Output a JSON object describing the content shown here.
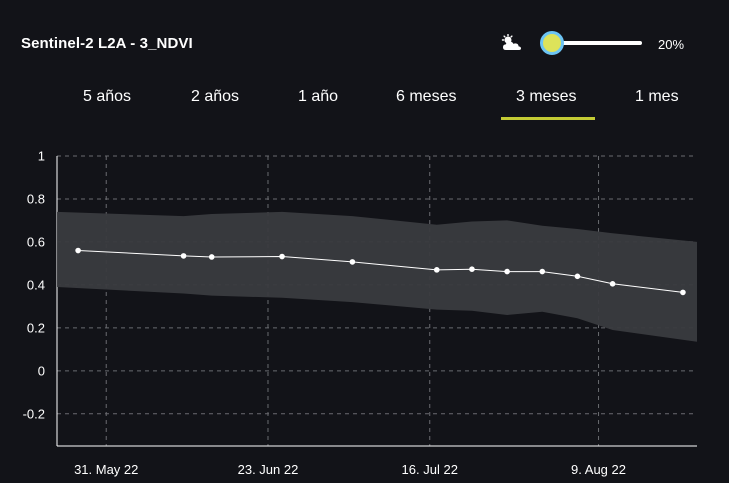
{
  "header": {
    "title": "Sentinel-2 L2A - 3_NDVI",
    "cloud_icon": "cloud-sun-icon",
    "cloud_coverage_label": "20%",
    "cloud_coverage_value": 0.2
  },
  "tabs": [
    {
      "label": "5 años",
      "active": false
    },
    {
      "label": "2 años",
      "active": false
    },
    {
      "label": "1 año",
      "active": false
    },
    {
      "label": "6 meses",
      "active": false
    },
    {
      "label": "3 meses",
      "active": true
    },
    {
      "label": "1 mes",
      "active": false
    }
  ],
  "colors": {
    "accent": "#c4cc35",
    "slider_ring": "#6cc4f4",
    "band": "#3a3b3f",
    "background": "#121318"
  },
  "chart_data": {
    "type": "line",
    "title": "",
    "xlabel": "",
    "ylabel": "",
    "ylim": [
      -0.35,
      1
    ],
    "xlim": [
      "2022-05-24",
      "2022-08-23"
    ],
    "yticks": [
      "1",
      "0.8",
      "0.6",
      "0.4",
      "0.2",
      "0",
      "-0.2"
    ],
    "ytick_values": [
      1,
      0.8,
      0.6,
      0.4,
      0.2,
      0,
      -0.2
    ],
    "xticks": [
      {
        "date": "2022-05-31",
        "label": "31. May 22"
      },
      {
        "date": "2022-06-23",
        "label": "23. Jun 22"
      },
      {
        "date": "2022-07-16",
        "label": "16. Jul 22"
      },
      {
        "date": "2022-08-09",
        "label": "9. Aug 22"
      }
    ],
    "grid": true,
    "series": [
      {
        "points": [
          {
            "x": "2022-05-27",
            "y": 0.56
          },
          {
            "x": "2022-06-11",
            "y": 0.535
          },
          {
            "x": "2022-06-15",
            "y": 0.53
          },
          {
            "x": "2022-06-25",
            "y": 0.532
          },
          {
            "x": "2022-07-05",
            "y": 0.507
          },
          {
            "x": "2022-07-17",
            "y": 0.47
          },
          {
            "x": "2022-07-22",
            "y": 0.473
          },
          {
            "x": "2022-07-27",
            "y": 0.462
          },
          {
            "x": "2022-08-01",
            "y": 0.462
          },
          {
            "x": "2022-08-06",
            "y": 0.44
          },
          {
            "x": "2022-08-11",
            "y": 0.405
          },
          {
            "x": "2022-08-21",
            "y": 0.365
          }
        ]
      }
    ],
    "band": {
      "upper": [
        {
          "x": "2022-05-24",
          "y": 0.74
        },
        {
          "x": "2022-06-11",
          "y": 0.72
        },
        {
          "x": "2022-06-15",
          "y": 0.73
        },
        {
          "x": "2022-06-25",
          "y": 0.74
        },
        {
          "x": "2022-07-05",
          "y": 0.72
        },
        {
          "x": "2022-07-17",
          "y": 0.68
        },
        {
          "x": "2022-07-22",
          "y": 0.695
        },
        {
          "x": "2022-07-27",
          "y": 0.7
        },
        {
          "x": "2022-08-01",
          "y": 0.675
        },
        {
          "x": "2022-08-06",
          "y": 0.66
        },
        {
          "x": "2022-08-11",
          "y": 0.64
        },
        {
          "x": "2022-08-23",
          "y": 0.6
        }
      ],
      "lower": [
        {
          "x": "2022-05-24",
          "y": 0.39
        },
        {
          "x": "2022-06-11",
          "y": 0.36
        },
        {
          "x": "2022-06-15",
          "y": 0.35
        },
        {
          "x": "2022-06-25",
          "y": 0.34
        },
        {
          "x": "2022-07-05",
          "y": 0.32
        },
        {
          "x": "2022-07-17",
          "y": 0.285
        },
        {
          "x": "2022-07-22",
          "y": 0.28
        },
        {
          "x": "2022-07-27",
          "y": 0.26
        },
        {
          "x": "2022-08-01",
          "y": 0.275
        },
        {
          "x": "2022-08-06",
          "y": 0.245
        },
        {
          "x": "2022-08-11",
          "y": 0.19
        },
        {
          "x": "2022-08-23",
          "y": 0.135
        }
      ]
    }
  }
}
